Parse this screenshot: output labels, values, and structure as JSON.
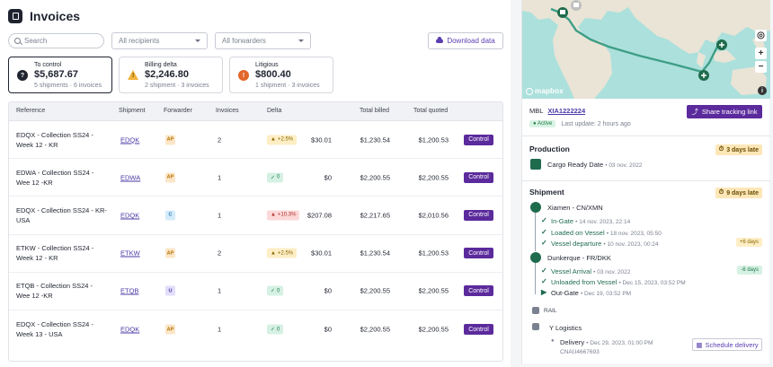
{
  "header": {
    "title": "Invoices"
  },
  "filters": {
    "search_placeholder": "Search",
    "recipients": "All recipients",
    "forwarders": "All forwarders",
    "download": "Download data"
  },
  "cards": [
    {
      "title": "To control",
      "value": "$5,687.67",
      "sub": "5 shipments · 6 invoices",
      "icon": "question-icon",
      "color": "#1f2430"
    },
    {
      "title": "Billing delta",
      "value": "$2,246.80",
      "sub": "2 shipment · 3 invoices",
      "icon": "warning-icon",
      "color": "#f0b33c"
    },
    {
      "title": "Litigious",
      "value": "$800.40",
      "sub": "1 shipment · 3 invoices",
      "icon": "alert-icon",
      "color": "#e2672a"
    }
  ],
  "table": {
    "headers": [
      "Reference",
      "Shipment",
      "Forwarder",
      "Invoices",
      "Delta",
      "Total billed",
      "Total quoted"
    ],
    "rows": [
      {
        "ref": "EDQX - Collection SS24 - Week 12 - KR",
        "shipment": "EDQK",
        "forwarder": "AP",
        "fwd_color": "#fbe6c8",
        "fwd_text": "#b57300",
        "invoices": "2",
        "delta_badge": "+2.5%",
        "delta_arrow": "▲",
        "delta_bg": "#fdeec5",
        "delta_color": "#8a6400",
        "delta": "$30.01",
        "billed": "$1,230.54",
        "quoted": "$1,200.53",
        "status": "Control"
      },
      {
        "ref": "EDWA - Collection SS24 - Wee 12 -KR",
        "shipment": "EDWA",
        "forwarder": "AP",
        "fwd_color": "#fbe6c8",
        "fwd_text": "#b57300",
        "invoices": "1",
        "delta_badge": "0",
        "delta_arrow": "✓",
        "delta_bg": "#d6f1e4",
        "delta_color": "#1f7a46",
        "delta": "$0",
        "billed": "$2,200.55",
        "quoted": "$2,200.55",
        "status": "Control"
      },
      {
        "ref": "EDQX - Collection SS24 - KR-USA",
        "shipment": "EDQK",
        "forwarder": "C",
        "fwd_color": "#d4ebfa",
        "fwd_text": "#2473b5",
        "invoices": "1",
        "delta_badge": "+10.3%",
        "delta_arrow": "▲",
        "delta_bg": "#fcd9d9",
        "delta_color": "#b32d2d",
        "delta": "$207.08",
        "billed": "$2,217.65",
        "quoted": "$2,010.56",
        "status": "Control"
      },
      {
        "ref": "ETKW - Collection SS24 - Week 12 - KR",
        "shipment": "ETKW",
        "forwarder": "AP",
        "fwd_color": "#fbe6c8",
        "fwd_text": "#b57300",
        "invoices": "2",
        "delta_badge": "+2.5%",
        "delta_arrow": "▲",
        "delta_bg": "#fdeec5",
        "delta_color": "#8a6400",
        "delta": "$30.01",
        "billed": "$1,230.54",
        "quoted": "$1,200.53",
        "status": "Control"
      },
      {
        "ref": "ETQB - Collection SS24 - Wee 12 -KR",
        "shipment": "ETQB",
        "forwarder": "U",
        "fwd_color": "#e2defa",
        "fwd_text": "#4b3aa6",
        "invoices": "1",
        "delta_badge": "0",
        "delta_arrow": "✓",
        "delta_bg": "#d6f1e4",
        "delta_color": "#1f7a46",
        "delta": "$0",
        "billed": "$2,200.55",
        "quoted": "$2,200.55",
        "status": "Control"
      },
      {
        "ref": "EDQX - Collection SS24 - Week 13 - USA",
        "shipment": "EDQK",
        "forwarder": "AP",
        "fwd_color": "#fbe6c8",
        "fwd_text": "#b57300",
        "invoices": "1",
        "delta_badge": "0",
        "delta_arrow": "✓",
        "delta_bg": "#d6f1e4",
        "delta_color": "#1f7a46",
        "delta": "$0",
        "billed": "$2,200.55",
        "quoted": "$2,200.55",
        "status": "Control"
      }
    ]
  },
  "tracking": {
    "mbl_label": "MBL",
    "mbl_value": "XIA1222224",
    "share": "Share tracking link",
    "active": "Active",
    "last_update": "Last update: 2 hours ago",
    "map": {
      "attribution": "mapbox",
      "zoom_in": "+",
      "zoom_out": "−",
      "info": "i"
    },
    "production": {
      "title": "Production",
      "late": "3 days late",
      "event": "Cargo Ready Date",
      "event_date": "03 nov. 2022"
    },
    "shipment": {
      "title": "Shipment",
      "late": "9 days late",
      "origin": "Xiamen - CN/XMN",
      "origin_events": [
        {
          "label": "In-Gate",
          "date": "14 nov. 2023, 22:14"
        },
        {
          "label": "Loaded on Vessel",
          "date": "18 nov. 2023, 05:50"
        },
        {
          "label": "Vessel departure",
          "date": "10 nov. 2023, 00:24",
          "chip": "+6 days"
        }
      ],
      "destination": "Dunkerque - FR/DKK",
      "dest_events": [
        {
          "label": "Vessel Arrival",
          "date": "03 nov. 2022",
          "chip": "-6 days"
        },
        {
          "label": "Unloaded from Vessel",
          "date": "Dec 15, 2023, 03:52 PM"
        },
        {
          "label": "Out-Gate",
          "date": "Dec 19, 03:52 PM"
        }
      ],
      "rail": "RAIL",
      "logistics": "Y Logistics",
      "delivery": {
        "label": "Delivery",
        "date": "Dec 29, 2023, 01:00 PM",
        "container": "CNAU4667693"
      },
      "schedule": "Schedule delivery"
    }
  }
}
